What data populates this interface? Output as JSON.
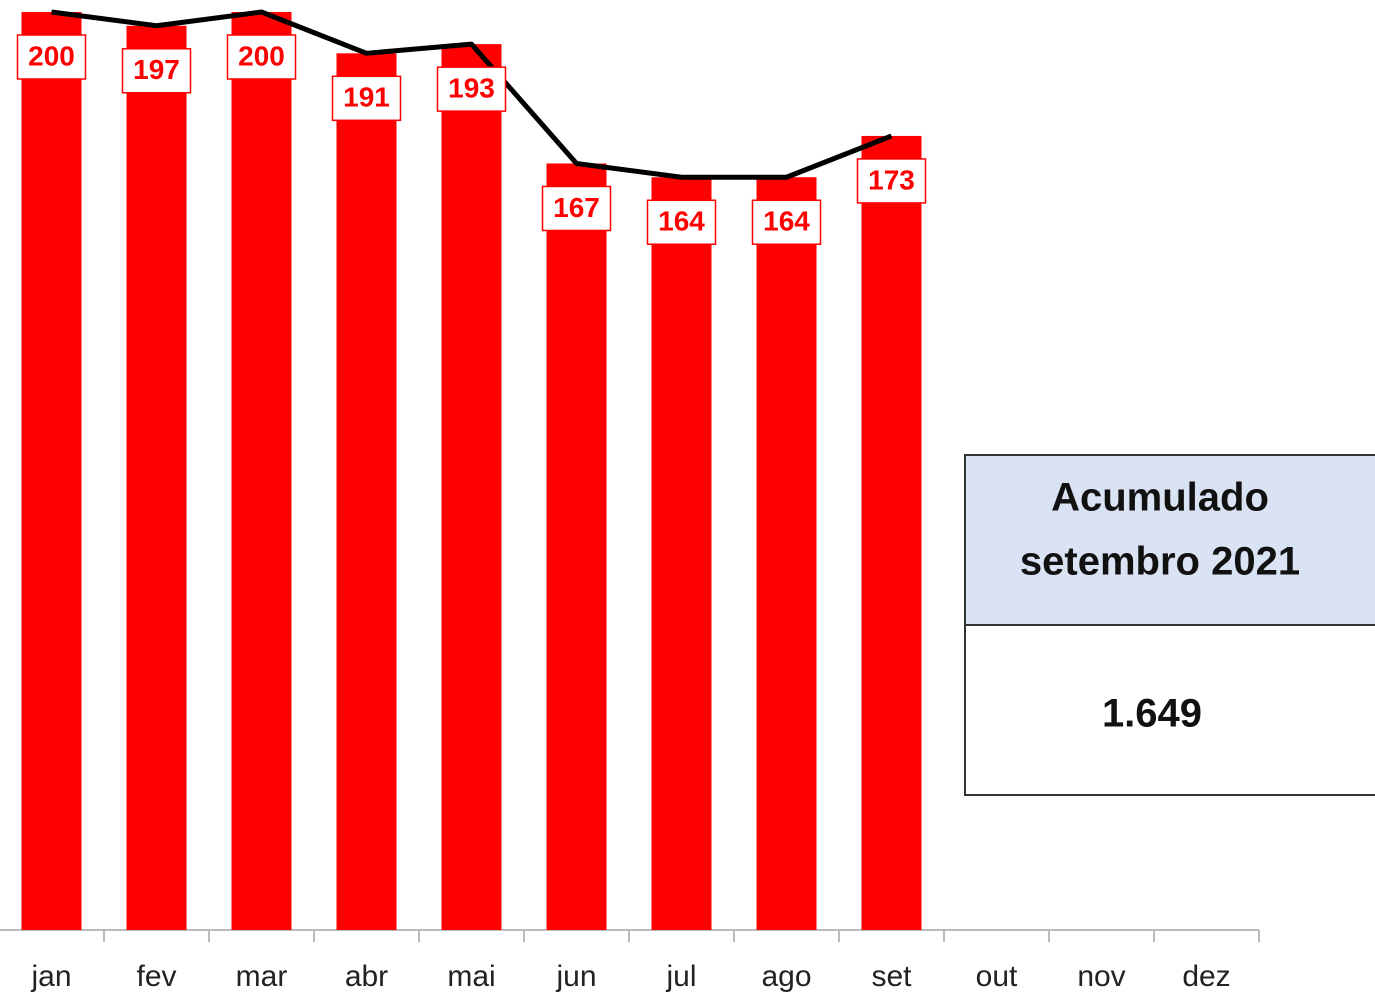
{
  "chart_data": {
    "type": "bar",
    "categories": [
      "jan",
      "fev",
      "mar",
      "abr",
      "mai",
      "jun",
      "jul",
      "ago",
      "set",
      "out",
      "nov",
      "dez"
    ],
    "values": [
      200,
      197,
      200,
      191,
      193,
      167,
      164,
      164,
      173,
      null,
      null,
      null
    ],
    "color": "#ff0000",
    "line_color": "#000000",
    "line": true,
    "data_labels": true
  },
  "summary": {
    "title": [
      "Acumulado",
      "setembro 2021"
    ],
    "value": "1.649"
  }
}
